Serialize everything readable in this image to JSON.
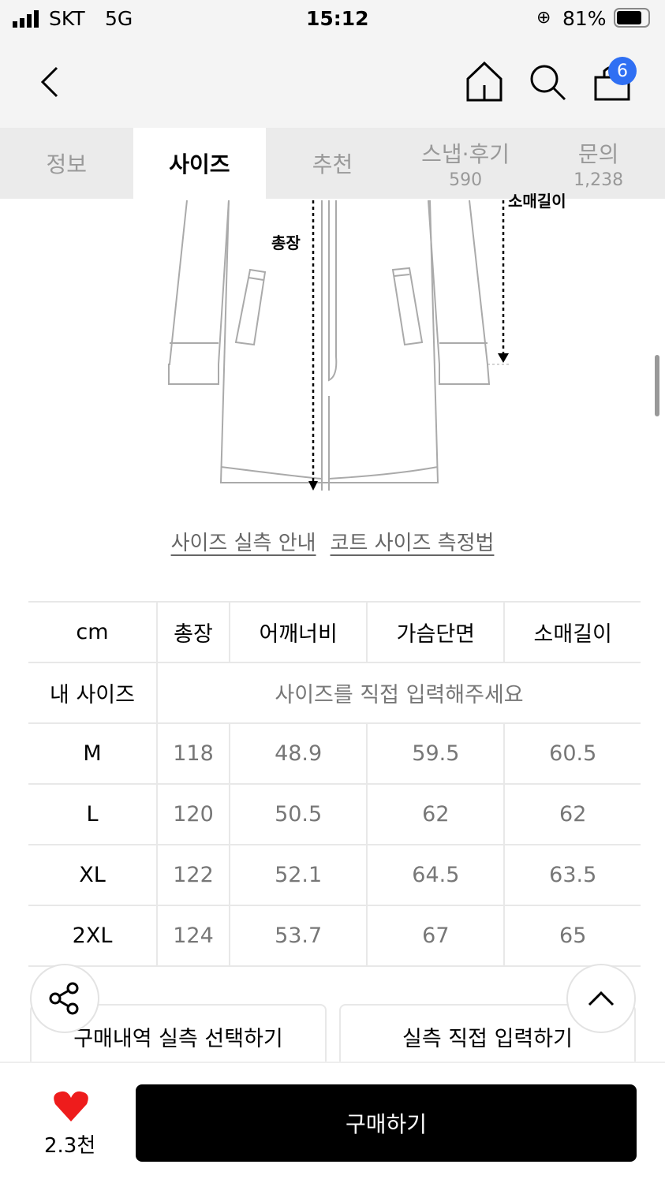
{
  "status_bar": {
    "carrier": "SKT",
    "network": "5G",
    "time": "15:12",
    "battery": "81%"
  },
  "nav": {
    "cart_count": "6",
    "icons": [
      "back-icon",
      "home-icon",
      "search-icon",
      "cart-icon"
    ]
  },
  "tabs": [
    {
      "label": "정보"
    },
    {
      "label": "사이즈",
      "active": true
    },
    {
      "label": "추천"
    },
    {
      "label": "스냅·후기",
      "count": "590"
    },
    {
      "label": "문의",
      "count": "1,238"
    }
  ],
  "diagram": {
    "length_label": "총장",
    "sleeve_label": "소매길이"
  },
  "links": {
    "size_guide": "사이즈 실측 안내",
    "coat_measure": "코트 사이즈 측정법"
  },
  "size_table": {
    "headers": [
      "cm",
      "총장",
      "어깨너비",
      "가슴단면",
      "소매길이"
    ],
    "my_size_label": "내 사이즈",
    "my_size_prompt": "사이즈를 직접 입력해주세요",
    "rows": [
      [
        "M",
        "118",
        "48.9",
        "59.5",
        "60.5"
      ],
      [
        "L",
        "120",
        "50.5",
        "62",
        "62"
      ],
      [
        "XL",
        "122",
        "52.1",
        "64.5",
        "63.5"
      ],
      [
        "2XL",
        "124",
        "53.7",
        "67",
        "65"
      ]
    ]
  },
  "actions": {
    "purchase_history": "구매내역 실측 선택하기",
    "direct_input": "실측 직접 입력하기"
  },
  "bottom": {
    "likes": "2.3천",
    "buy": "구매하기"
  },
  "colors": {
    "badge": "#2f6ff3",
    "heart": "#ee1c1c",
    "buy_bg": "#000000"
  }
}
